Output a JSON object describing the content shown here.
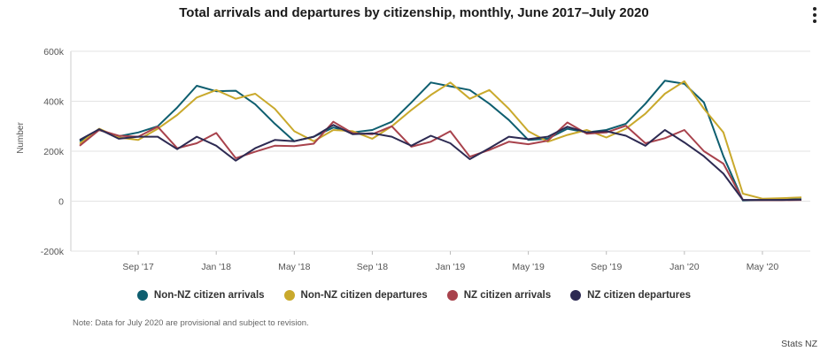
{
  "title": "Total arrivals and departures by citizenship, monthly, June 2017–July 2020",
  "menu_icon": "more-vertical-icon",
  "note": "Note: Data for July 2020 are provisional and subject to revision.",
  "credit": "Stats NZ",
  "chart_data": {
    "type": "line",
    "ylabel": "Number",
    "ylim": [
      -200000,
      600000
    ],
    "y_ticks": [
      -200000,
      0,
      200000,
      400000,
      600000
    ],
    "y_tick_labels": [
      "-200k",
      "0",
      "200k",
      "400k",
      "600k"
    ],
    "x_tick_labels": [
      "Sep '17",
      "Jan '18",
      "May '18",
      "Sep '18",
      "Jan '19",
      "May '19",
      "Sep '19",
      "Jan '20",
      "May '20"
    ],
    "x_tick_index": [
      3,
      7,
      11,
      15,
      19,
      23,
      27,
      31,
      35
    ],
    "x": [
      "2017-06",
      "2017-07",
      "2017-08",
      "2017-09",
      "2017-10",
      "2017-11",
      "2017-12",
      "2018-01",
      "2018-02",
      "2018-03",
      "2018-04",
      "2018-05",
      "2018-06",
      "2018-07",
      "2018-08",
      "2018-09",
      "2018-10",
      "2018-11",
      "2018-12",
      "2019-01",
      "2019-02",
      "2019-03",
      "2019-04",
      "2019-05",
      "2019-06",
      "2019-07",
      "2019-08",
      "2019-09",
      "2019-10",
      "2019-11",
      "2019-12",
      "2020-01",
      "2020-02",
      "2020-03",
      "2020-04",
      "2020-05",
      "2020-06",
      "2020-07"
    ],
    "series": [
      {
        "name": "Non-NZ citizen arrivals",
        "color": "#0e5e6f",
        "values": [
          240000,
          285000,
          260000,
          275000,
          300000,
          375000,
          462000,
          440000,
          442000,
          388000,
          310000,
          240000,
          258000,
          295000,
          275000,
          285000,
          318000,
          395000,
          475000,
          460000,
          445000,
          390000,
          325000,
          245000,
          250000,
          290000,
          275000,
          285000,
          310000,
          390000,
          482000,
          470000,
          395000,
          180000,
          3000,
          5000,
          6000,
          8000
        ]
      },
      {
        "name": "Non-NZ citizen departures",
        "color": "#c9a92c",
        "values": [
          230000,
          290000,
          255000,
          245000,
          290000,
          345000,
          415000,
          445000,
          410000,
          430000,
          370000,
          280000,
          240000,
          285000,
          280000,
          250000,
          300000,
          365000,
          425000,
          475000,
          410000,
          445000,
          370000,
          280000,
          238000,
          265000,
          285000,
          255000,
          290000,
          350000,
          430000,
          480000,
          370000,
          275000,
          30000,
          10000,
          12000,
          15000
        ]
      },
      {
        "name": "NZ citizen arrivals",
        "color": "#a8424c",
        "values": [
          222000,
          285000,
          262000,
          258000,
          298000,
          212000,
          232000,
          273000,
          172000,
          198000,
          222000,
          220000,
          230000,
          318000,
          272000,
          268000,
          300000,
          218000,
          238000,
          280000,
          178000,
          205000,
          238000,
          228000,
          242000,
          315000,
          270000,
          275000,
          302000,
          232000,
          252000,
          285000,
          200000,
          150000,
          5000,
          4000,
          4000,
          5000
        ]
      },
      {
        "name": "NZ citizen departures",
        "color": "#2d2a52",
        "values": [
          245000,
          288000,
          250000,
          258000,
          258000,
          208000,
          258000,
          222000,
          162000,
          212000,
          245000,
          240000,
          258000,
          305000,
          268000,
          272000,
          258000,
          222000,
          262000,
          232000,
          168000,
          212000,
          258000,
          248000,
          258000,
          298000,
          275000,
          280000,
          262000,
          222000,
          285000,
          235000,
          180000,
          110000,
          5000,
          5000,
          5000,
          6000
        ]
      }
    ],
    "grid": true,
    "legend": "bottom"
  }
}
